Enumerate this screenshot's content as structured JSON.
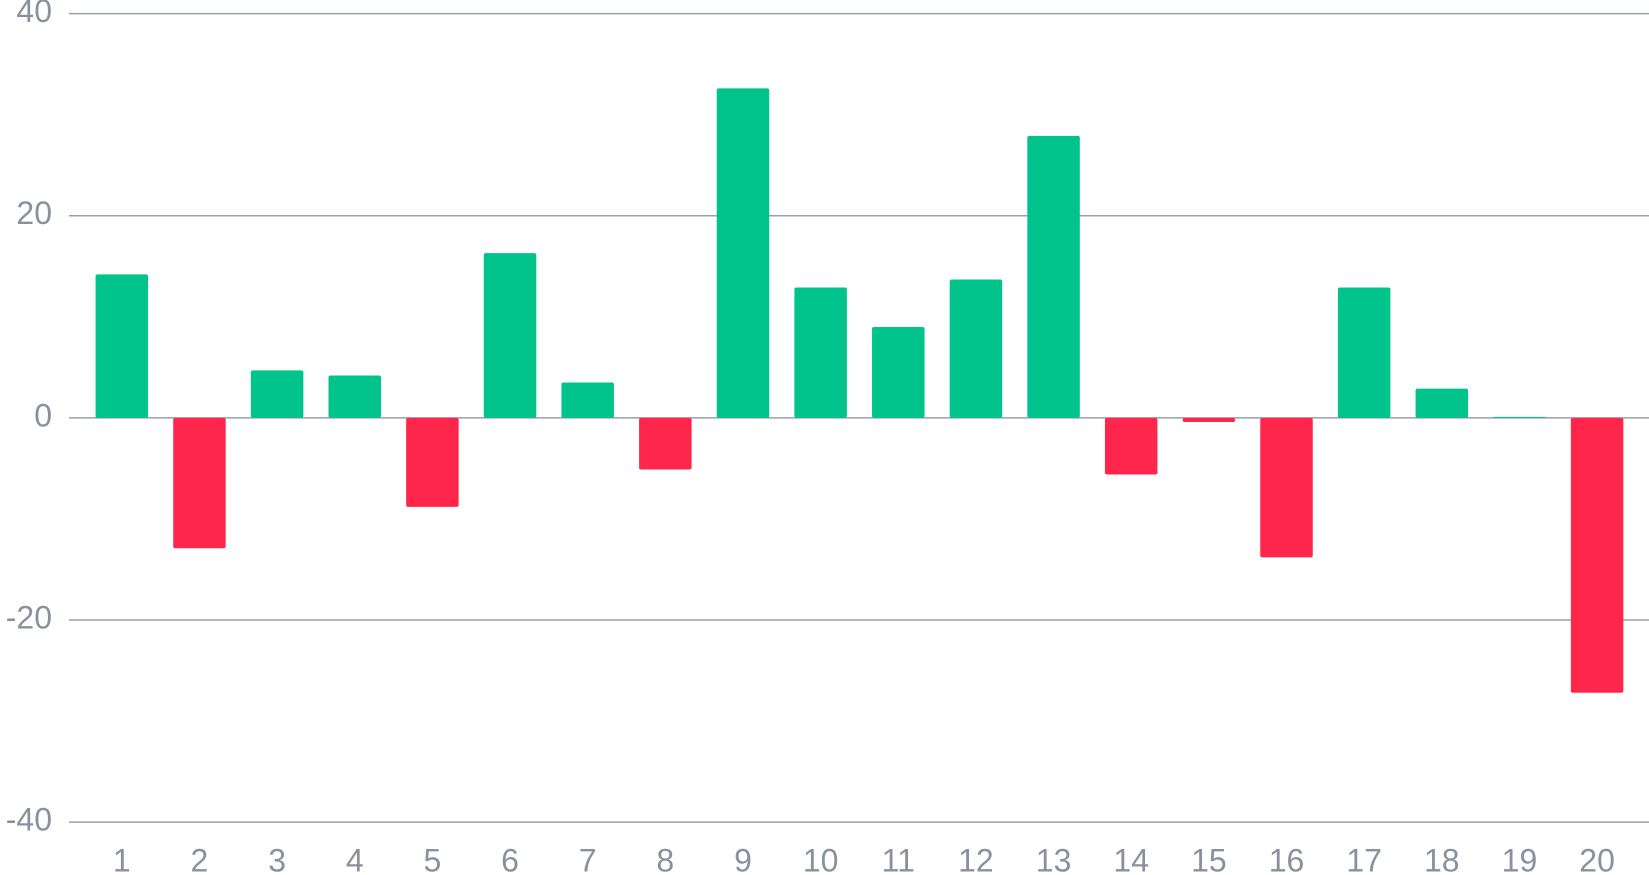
{
  "chart_data": {
    "type": "bar",
    "categories": [
      "1",
      "2",
      "3",
      "4",
      "5",
      "6",
      "7",
      "8",
      "9",
      "10",
      "11",
      "12",
      "13",
      "14",
      "15",
      "16",
      "17",
      "18",
      "19",
      "20"
    ],
    "values": [
      14.2,
      -12.9,
      4.7,
      4.2,
      -8.8,
      16.3,
      3.5,
      -5.1,
      32.6,
      12.9,
      9.0,
      13.7,
      27.9,
      -5.6,
      -0.4,
      -13.8,
      12.9,
      2.9,
      0.1,
      -27.2
    ],
    "positive_color": "#00c48c",
    "negative_color": "#ff264c",
    "ylim": [
      -40,
      40
    ],
    "yticks": [
      -40,
      -20,
      0,
      20,
      40
    ],
    "grid": true
  }
}
